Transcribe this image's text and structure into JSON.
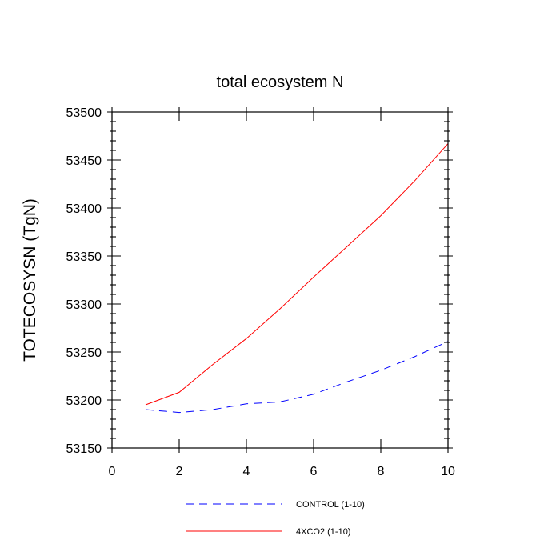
{
  "chart_data": {
    "type": "line",
    "title": "total ecosystem N",
    "xlabel": "",
    "ylabel": "TOTECOSYSN  (TgN)",
    "xlim": [
      0,
      10
    ],
    "ylim": [
      53150,
      53500
    ],
    "xticks": [
      0,
      2,
      4,
      6,
      8,
      10
    ],
    "yticks": [
      53150,
      53200,
      53250,
      53300,
      53350,
      53400,
      53450,
      53500
    ],
    "grid": false,
    "legend_position": "bottom",
    "series": [
      {
        "name": "CONTROL (1-10)",
        "color": "#0000ff",
        "dash": "dashed",
        "x": [
          1,
          2,
          3,
          4,
          5,
          6,
          7,
          8,
          9,
          10
        ],
        "y": [
          53190,
          53187,
          53190,
          53196,
          53198,
          53206,
          53219,
          53231,
          53245,
          53261
        ]
      },
      {
        "name": "4XCO2 (1-10)",
        "color": "#ff0000",
        "dash": "solid",
        "x": [
          1,
          2,
          3,
          4,
          5,
          6,
          7,
          8,
          9,
          10
        ],
        "y": [
          53195,
          53208,
          53237,
          53264,
          53295,
          53328,
          53360,
          53392,
          53428,
          53467
        ]
      }
    ]
  }
}
